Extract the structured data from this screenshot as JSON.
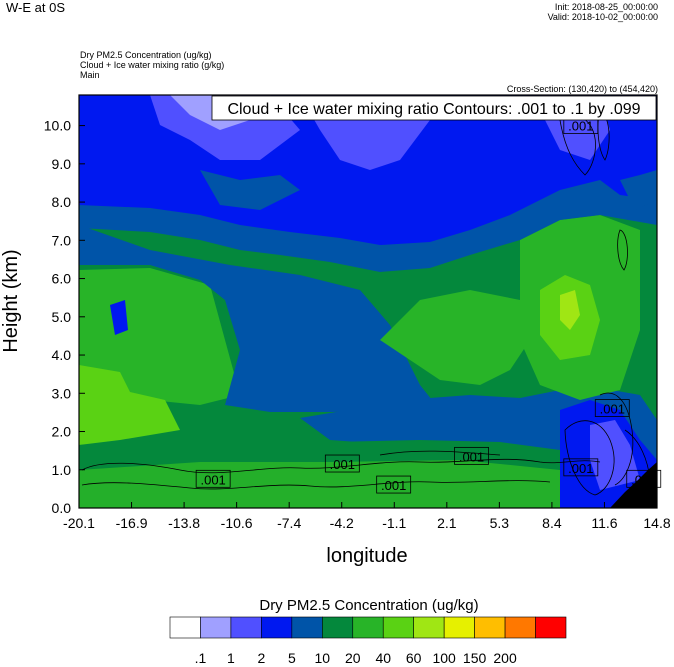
{
  "header": {
    "title": "W-E at 0S",
    "init": "Init: 2018-08-25_00:00:00",
    "valid": "Valid: 2018-10-02_00:00:00",
    "field1": "Dry PM2.5 Concentration   (ug/kg)",
    "field2": "Cloud + Ice water mixing ratio   (g/kg)",
    "field3": "Main",
    "cross_section": "Cross-Section: (130,420) to (454,420)"
  },
  "chart_data": {
    "type": "heatmap",
    "title": "",
    "xlabel": "longitude",
    "ylabel": "Height (km)",
    "xticks": [
      "-20.1",
      "-16.9",
      "-13.8",
      "-10.6",
      "-7.4",
      "-4.2",
      "-1.1",
      "2.1",
      "5.3",
      "8.4",
      "11.6",
      "14.8"
    ],
    "yticks": [
      "0.0",
      "1.0",
      "2.0",
      "3.0",
      "4.0",
      "5.0",
      "6.0",
      "7.0",
      "8.0",
      "9.0",
      "10.0"
    ],
    "xlim": [
      -20.1,
      14.8
    ],
    "ylim": [
      0,
      10.8
    ],
    "contour_label": "Cloud + Ice water mixing ratio Contours: .001 to .1 by .099",
    "contour_value_label": ".001",
    "contour_labels": [
      {
        "x": 10.2,
        "y": 10.0
      },
      {
        "x": 12.1,
        "y": 2.6
      },
      {
        "x": -12.0,
        "y": 0.75
      },
      {
        "x": -4.2,
        "y": 1.15
      },
      {
        "x": -1.1,
        "y": 0.6
      },
      {
        "x": 3.6,
        "y": 1.35
      },
      {
        "x": 10.2,
        "y": 1.05
      },
      {
        "x": 14.0,
        "y": 0.75
      }
    ],
    "colorbar": {
      "title": "Dry PM2.5 Concentration  (ug/kg)",
      "labels": [
        ".1",
        "1",
        "2",
        "5",
        "10",
        "20",
        "40",
        "60",
        "100",
        "150",
        "200"
      ],
      "colors": [
        "#ffffff",
        "#a0a0ff",
        "#5050ff",
        "#0018f0",
        "#0054a8",
        "#04883c",
        "#28b428",
        "#5ad214",
        "#a0e614",
        "#e6f000",
        "#ffbe00",
        "#ff7800",
        "#ff0000"
      ]
    }
  }
}
